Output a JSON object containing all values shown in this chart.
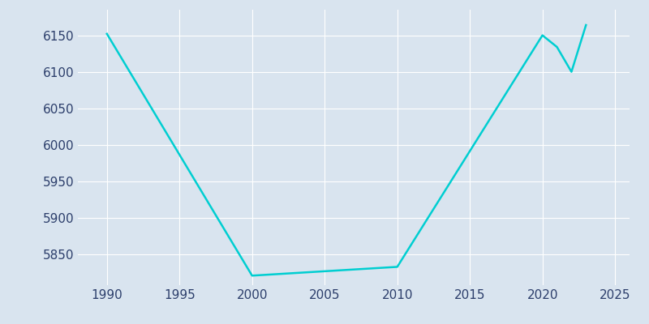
{
  "years": [
    1990,
    2000,
    2010,
    2020,
    2021,
    2022,
    2023
  ],
  "population": [
    6152,
    5821,
    5833,
    6150,
    6134,
    6100,
    6164
  ],
  "line_color": "#00CED1",
  "background_color": "#D9E4EF",
  "grid_color": "#FFFFFF",
  "tick_label_color": "#2C3E6B",
  "xlim": [
    1988,
    2026
  ],
  "ylim": [
    5808,
    6185
  ],
  "xticks": [
    1990,
    1995,
    2000,
    2005,
    2010,
    2015,
    2020,
    2025
  ],
  "yticks": [
    5850,
    5900,
    5950,
    6000,
    6050,
    6100,
    6150
  ],
  "line_width": 1.8,
  "figsize": [
    8.0,
    4.0
  ],
  "dpi": 100
}
